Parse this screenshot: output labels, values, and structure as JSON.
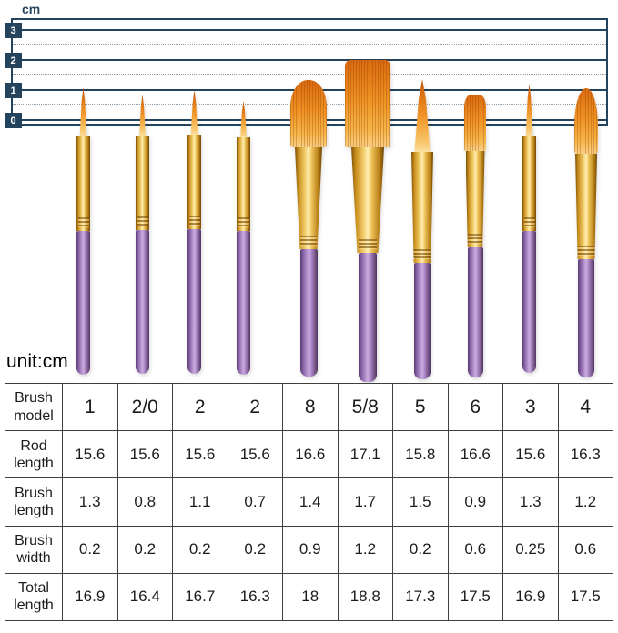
{
  "ruler": {
    "unit_label": "cm",
    "ticks": [
      "3",
      "2",
      "1",
      "0"
    ]
  },
  "unit_note": "unit:cm",
  "brushes": [
    {
      "model": "1",
      "tip_type": "round-pointed"
    },
    {
      "model": "2/0",
      "tip_type": "round-pointed"
    },
    {
      "model": "2",
      "tip_type": "round-pointed"
    },
    {
      "model": "2",
      "tip_type": "round-pointed"
    },
    {
      "model": "8",
      "tip_type": "flat-mop"
    },
    {
      "model": "5/8",
      "tip_type": "flat-wash"
    },
    {
      "model": "5",
      "tip_type": "round-pointed-large"
    },
    {
      "model": "6",
      "tip_type": "flat"
    },
    {
      "model": "3",
      "tip_type": "round-pointed"
    },
    {
      "model": "4",
      "tip_type": "filbert"
    }
  ],
  "colors": {
    "ruler_navy": "#24435c",
    "handle_purple": "#a983c4",
    "ferrule_gold": "#eec35a",
    "bristle_orange": "#ee9122"
  },
  "table": {
    "rows": [
      {
        "label": "Brush model",
        "values": [
          "1",
          "2/0",
          "2",
          "2",
          "8",
          "5/8",
          "5",
          "6",
          "3",
          "4"
        ]
      },
      {
        "label": "Rod length",
        "values": [
          "15.6",
          "15.6",
          "15.6",
          "15.6",
          "16.6",
          "17.1",
          "15.8",
          "16.6",
          "15.6",
          "16.3"
        ]
      },
      {
        "label": "Brush length",
        "values": [
          "1.3",
          "0.8",
          "1.1",
          "0.7",
          "1.4",
          "1.7",
          "1.5",
          "0.9",
          "1.3",
          "1.2"
        ]
      },
      {
        "label": "Brush width",
        "values": [
          "0.2",
          "0.2",
          "0.2",
          "0.2",
          "0.9",
          "1.2",
          "0.2",
          "0.6",
          "0.25",
          "0.6"
        ]
      },
      {
        "label": "Total length",
        "values": [
          "16.9",
          "16.4",
          "16.7",
          "16.3",
          "18",
          "18.8",
          "17.3",
          "17.5",
          "16.9",
          "17.5"
        ]
      }
    ]
  }
}
